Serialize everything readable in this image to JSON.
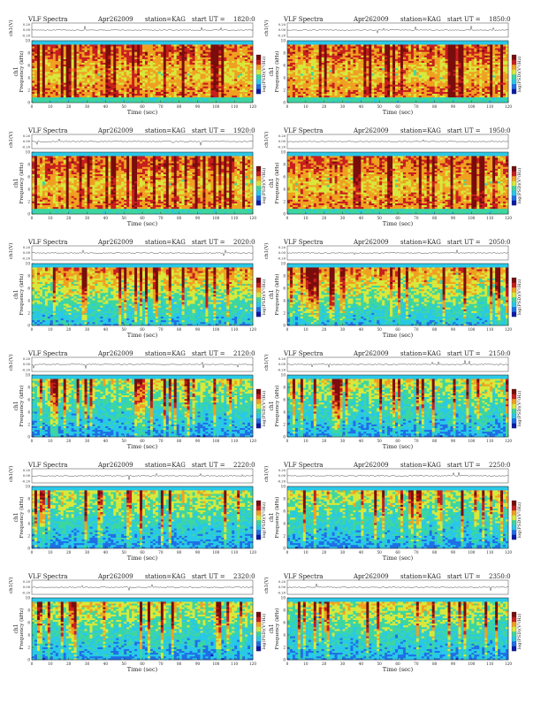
{
  "common": {
    "title": "VLF Spectra",
    "date": "Apr262009",
    "station": "station=KAG",
    "ut_prefix": "start  UT =",
    "wave_ylabel": "ch1(V)",
    "spec_ylabel": "Frequency (kHz)",
    "ch_label": "ch1",
    "xlabel": "Time (sec)",
    "cbar_label": "log(PSD)(V²/Hz)",
    "wave_ticks": [
      "0.20",
      "0.00",
      "-0.20"
    ]
  },
  "chart_data": [
    {
      "type": "heatmap",
      "ut": "1820:0",
      "xlim": [
        0,
        120
      ],
      "ylim": [
        0,
        10
      ],
      "xticks": [
        0,
        10,
        20,
        30,
        40,
        50,
        60,
        70,
        80,
        90,
        100,
        110,
        120
      ],
      "yticks": [
        0,
        2,
        4,
        6,
        8,
        10
      ],
      "band_top_khz": 9.3,
      "activity": "high"
    },
    {
      "type": "heatmap",
      "ut": "1850:0",
      "xlim": [
        0,
        120
      ],
      "ylim": [
        0,
        10
      ],
      "xticks": [
        0,
        10,
        20,
        30,
        40,
        50,
        60,
        70,
        80,
        90,
        100,
        110,
        120
      ],
      "yticks": [
        0,
        2,
        4,
        6,
        8,
        10
      ],
      "band_top_khz": 9.3,
      "activity": "high"
    },
    {
      "type": "heatmap",
      "ut": "1920:0",
      "xlim": [
        0,
        120
      ],
      "ylim": [
        0,
        10
      ],
      "xticks": [
        0,
        10,
        20,
        30,
        40,
        50,
        60,
        70,
        80,
        90,
        100,
        110,
        120
      ],
      "yticks": [
        0,
        2,
        4,
        6,
        8,
        10
      ],
      "band_top_khz": 9.3,
      "activity": "high"
    },
    {
      "type": "heatmap",
      "ut": "1950:0",
      "xlim": [
        0,
        120
      ],
      "ylim": [
        0,
        10
      ],
      "xticks": [
        0,
        10,
        20,
        30,
        40,
        50,
        60,
        70,
        80,
        90,
        100,
        110,
        120
      ],
      "yticks": [
        0,
        2,
        4,
        6,
        8,
        10
      ],
      "band_top_khz": 9.3,
      "activity": "high"
    },
    {
      "type": "heatmap",
      "ut": "2020:0",
      "xlim": [
        0,
        120
      ],
      "ylim": [
        0,
        10
      ],
      "xticks": [
        0,
        10,
        20,
        30,
        40,
        50,
        60,
        70,
        80,
        90,
        100,
        110,
        120
      ],
      "yticks": [
        0,
        2,
        4,
        6,
        8,
        10
      ],
      "band_top_khz": 9.3,
      "activity": "medium"
    },
    {
      "type": "heatmap",
      "ut": "2050:0",
      "xlim": [
        0,
        120
      ],
      "ylim": [
        0,
        10
      ],
      "xticks": [
        0,
        10,
        20,
        30,
        40,
        50,
        60,
        70,
        80,
        90,
        100,
        110,
        120
      ],
      "yticks": [
        0,
        2,
        4,
        6,
        8,
        10
      ],
      "band_top_khz": 9.3,
      "activity": "medium"
    },
    {
      "type": "heatmap",
      "ut": "2120:0",
      "xlim": [
        0,
        120
      ],
      "ylim": [
        0,
        10
      ],
      "xticks": [
        0,
        10,
        20,
        30,
        40,
        50,
        60,
        70,
        80,
        90,
        100,
        110,
        120
      ],
      "yticks": [
        0,
        2,
        4,
        6,
        8,
        10
      ],
      "band_top_khz": 9.3,
      "activity": "low"
    },
    {
      "type": "heatmap",
      "ut": "2150:0",
      "xlim": [
        0,
        120
      ],
      "ylim": [
        0,
        10
      ],
      "xticks": [
        0,
        10,
        20,
        30,
        40,
        50,
        60,
        70,
        80,
        90,
        100,
        110,
        120
      ],
      "yticks": [
        0,
        2,
        4,
        6,
        8,
        10
      ],
      "band_top_khz": 9.3,
      "activity": "low"
    },
    {
      "type": "heatmap",
      "ut": "2220:0",
      "xlim": [
        0,
        120
      ],
      "ylim": [
        0,
        10
      ],
      "xticks": [
        0,
        10,
        20,
        30,
        40,
        50,
        60,
        70,
        80,
        90,
        100,
        110,
        120
      ],
      "yticks": [
        0,
        2,
        4,
        6,
        8,
        10
      ],
      "band_top_khz": 9.3,
      "activity": "low"
    },
    {
      "type": "heatmap",
      "ut": "2250:0",
      "xlim": [
        0,
        120
      ],
      "ylim": [
        0,
        10
      ],
      "xticks": [
        0,
        10,
        20,
        30,
        40,
        50,
        60,
        70,
        80,
        90,
        100,
        110,
        120
      ],
      "yticks": [
        0,
        2,
        4,
        6,
        8,
        10
      ],
      "band_top_khz": 9.3,
      "activity": "low"
    },
    {
      "type": "heatmap",
      "ut": "2320:0",
      "xlim": [
        0,
        120
      ],
      "ylim": [
        0,
        10
      ],
      "xticks": [
        0,
        10,
        20,
        30,
        40,
        50,
        60,
        70,
        80,
        90,
        100,
        110,
        120
      ],
      "yticks": [
        0,
        2,
        4,
        6,
        8,
        10
      ],
      "band_top_khz": 9.3,
      "activity": "low"
    },
    {
      "type": "heatmap",
      "ut": "2350:0",
      "xlim": [
        0,
        120
      ],
      "ylim": [
        0,
        10
      ],
      "xticks": [
        0,
        10,
        20,
        30,
        40,
        50,
        60,
        70,
        80,
        90,
        100,
        110,
        120
      ],
      "yticks": [
        0,
        2,
        4,
        6,
        8,
        10
      ],
      "band_top_khz": 9.3,
      "activity": "low"
    }
  ],
  "colors": {
    "colormap": [
      "#0a1aa8",
      "#1f6fe6",
      "#28c8e8",
      "#3cd6a0",
      "#d8e83a",
      "#f0a020",
      "#c81e1e",
      "#7a0c0c"
    ],
    "background_band": "#28c8d0"
  }
}
